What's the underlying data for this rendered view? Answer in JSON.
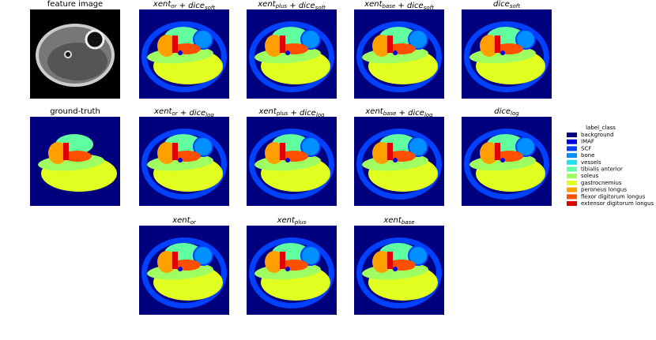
{
  "panels": [
    {
      "title": [
        {
          "text": "feature image"
        }
      ]
    },
    {
      "title": [
        {
          "text": "xent",
          "sub": "or"
        },
        {
          "text": " + dice",
          "sub": "soft"
        }
      ]
    },
    {
      "title": [
        {
          "text": "xent",
          "sub": "plus"
        },
        {
          "text": " + dice",
          "sub": "soft"
        }
      ]
    },
    {
      "title": [
        {
          "text": "xent",
          "sub": "base"
        },
        {
          "text": " + dice",
          "sub": "soft"
        }
      ]
    },
    {
      "title": [
        {
          "text": "dice",
          "sub": "soft"
        }
      ]
    },
    {
      "title": [
        {
          "text": "ground-truth"
        }
      ]
    },
    {
      "title": [
        {
          "text": "xent",
          "sub": "or"
        },
        {
          "text": " + dice",
          "sub": "log"
        }
      ]
    },
    {
      "title": [
        {
          "text": "xent",
          "sub": "plus"
        },
        {
          "text": " + dice",
          "sub": "log"
        }
      ]
    },
    {
      "title": [
        {
          "text": "xent",
          "sub": "base"
        },
        {
          "text": " + dice",
          "sub": "log"
        }
      ]
    },
    {
      "title": [
        {
          "text": "dice",
          "sub": "log"
        }
      ]
    },
    {
      "title": [
        {
          "text": "xent",
          "sub": "or"
        }
      ]
    },
    {
      "title": [
        {
          "text": "xent",
          "sub": "plus"
        }
      ]
    },
    {
      "title": [
        {
          "text": "xent",
          "sub": "base"
        }
      ]
    }
  ],
  "legend": {
    "title": "label_class",
    "items": [
      {
        "label": "background",
        "color": "#00007f"
      },
      {
        "label": "IMAF",
        "color": "#0000e0"
      },
      {
        "label": "SCF",
        "color": "#0040ff"
      },
      {
        "label": "bone",
        "color": "#0090ff"
      },
      {
        "label": "vessels",
        "color": "#20e0f0"
      },
      {
        "label": "tibialis anterior",
        "color": "#60ffa0"
      },
      {
        "label": "soleus",
        "color": "#a0ff60"
      },
      {
        "label": "gastrocnemius",
        "color": "#e0ff20"
      },
      {
        "label": "peroneus longus",
        "color": "#ffa000"
      },
      {
        "label": "flexor digitorum longus",
        "color": "#ff5000"
      },
      {
        "label": "extensor digitorum longus",
        "color": "#e00000"
      }
    ]
  }
}
